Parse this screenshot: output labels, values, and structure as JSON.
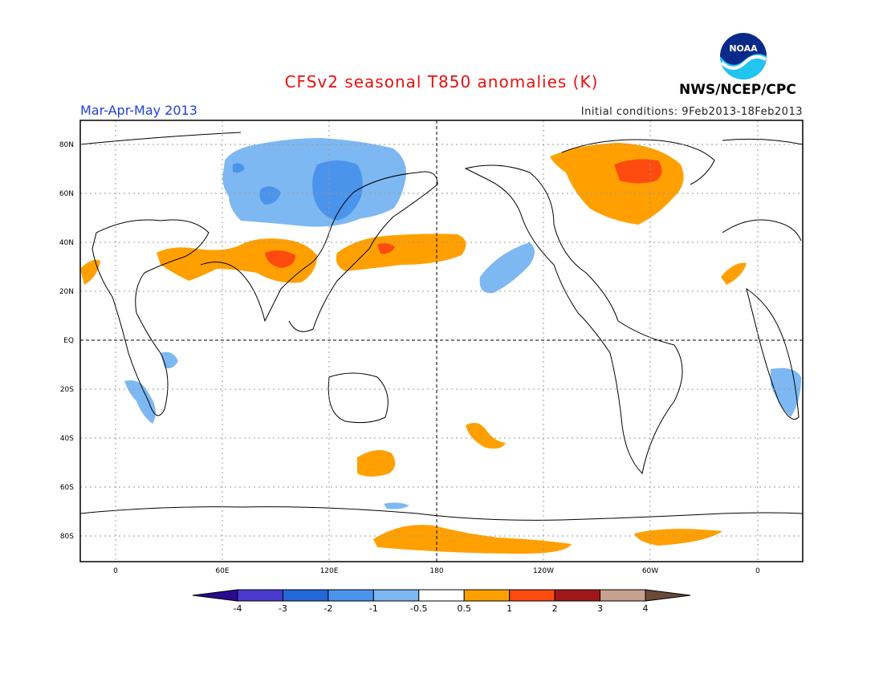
{
  "header": {
    "title": "CFSv2 seasonal T850 anomalies (K)",
    "period": "Mar-Apr-May 2013",
    "initial_conditions": "Initial conditions: 9Feb2013-18Feb2013",
    "agency": "NWS/NCEP/CPC",
    "logo_text": "NOAA"
  },
  "map": {
    "lat_ticks": [
      "80N",
      "60N",
      "40N",
      "20N",
      "EQ",
      "20S",
      "40S",
      "60S",
      "80S"
    ],
    "lon_ticks": [
      "0",
      "60E",
      "120E",
      "180",
      "120W",
      "60W",
      "0"
    ],
    "gridlines": true,
    "central_longitude": 180
  },
  "colorbar": {
    "labels": [
      "-4",
      "-3",
      "-2",
      "-1",
      "-0.5",
      "0.5",
      "1",
      "2",
      "3",
      "4"
    ],
    "colors": [
      "#2a0a8f",
      "#4a3ad0",
      "#2468d8",
      "#4a94ec",
      "#7db8f2",
      "#ffffff",
      "#ffa000",
      "#ff4a10",
      "#a01818",
      "#c8a090",
      "#6b4a3a"
    ]
  },
  "anomalies": {
    "colors": {
      "cold_1": "#7db8f2",
      "cold_2": "#4a94ec",
      "warm_1": "#ffa000",
      "warm_2": "#ff4a10"
    }
  }
}
